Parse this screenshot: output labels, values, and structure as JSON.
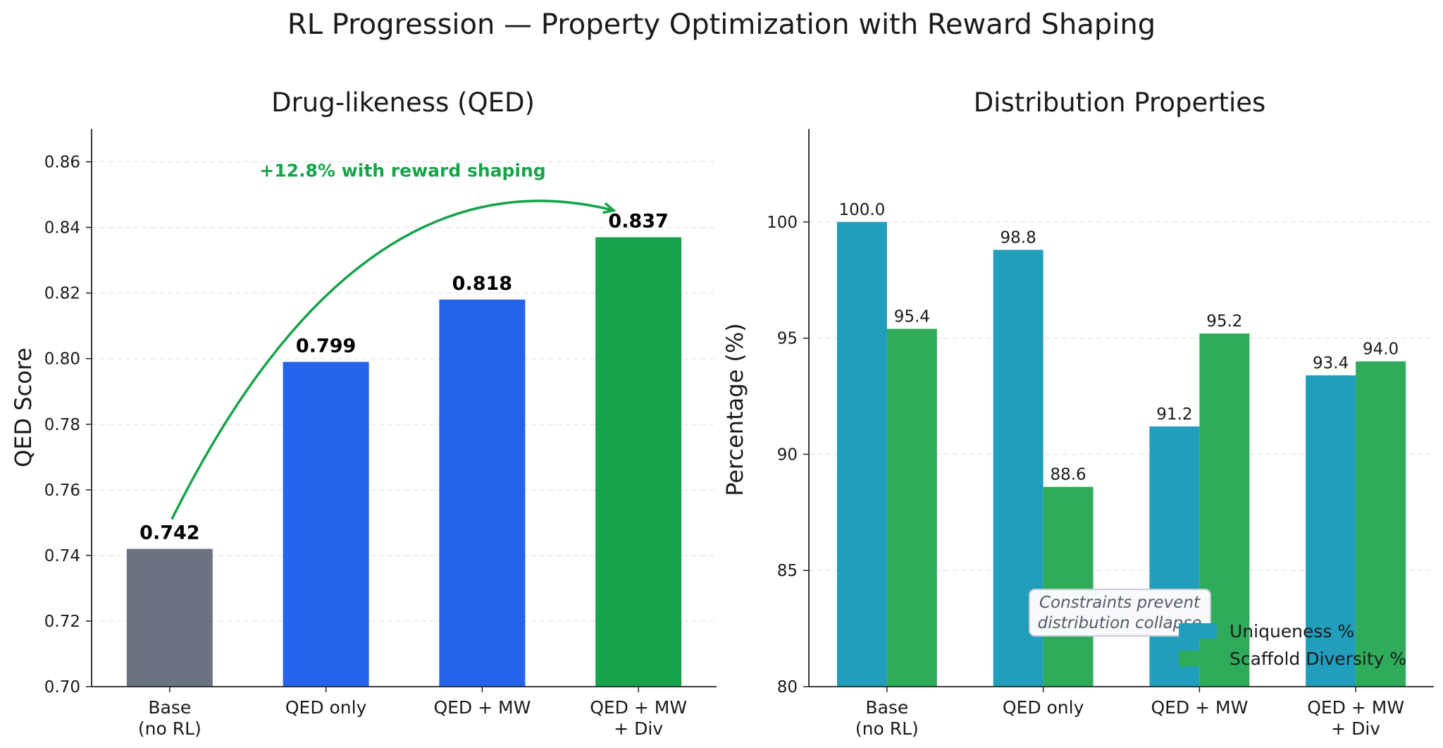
{
  "suptitle": "RL Progression — Property Optimization with Reward Shaping",
  "chart_data": [
    {
      "type": "bar",
      "title": "Drug-likeness (QED)",
      "xlabel": "",
      "ylabel": "QED Score",
      "categories": [
        [
          "Base",
          "(no RL)"
        ],
        [
          "QED only"
        ],
        [
          "QED + MW"
        ],
        [
          "QED + MW",
          "+ Div"
        ]
      ],
      "values": [
        0.742,
        0.799,
        0.818,
        0.837
      ],
      "value_labels": [
        "0.742",
        "0.799",
        "0.818",
        "0.837"
      ],
      "colors": [
        "#6b7280",
        "#2563eb",
        "#2563eb",
        "#16a34a"
      ],
      "ylim": [
        0.7,
        0.87
      ],
      "yticks": [
        "0.70",
        "0.72",
        "0.74",
        "0.76",
        "0.78",
        "0.80",
        "0.82",
        "0.84",
        "0.86"
      ],
      "grid": true,
      "annotation": {
        "text": "+12.8% with reward shaping",
        "from": "Base",
        "to": "QED + MW + Div",
        "color": "#16a34a"
      }
    },
    {
      "type": "bar",
      "title": "Distribution Properties",
      "xlabel": "",
      "ylabel": "Percentage (%)",
      "categories": [
        [
          "Base",
          "(no RL)"
        ],
        [
          "QED only"
        ],
        [
          "QED + MW"
        ],
        [
          "QED + MW",
          "+ Div"
        ]
      ],
      "series": [
        {
          "name": "Uniqueness %",
          "values": [
            100.0,
            98.8,
            91.2,
            93.4
          ],
          "labels": [
            "100.0",
            "98.8",
            "91.2",
            "93.4"
          ],
          "color": "#219ebc"
        },
        {
          "name": "Scaffold Diversity %",
          "values": [
            95.4,
            88.6,
            95.2,
            94.0
          ],
          "labels": [
            "95.4",
            "88.6",
            "95.2",
            "94.0"
          ],
          "color": "#2eac5a"
        }
      ],
      "ylim": [
        80,
        104
      ],
      "yticks": [
        "80",
        "85",
        "90",
        "95",
        "100"
      ],
      "grid": true,
      "legend": "lower-right",
      "note": [
        "Constraints prevent",
        "distribution collapse"
      ]
    }
  ]
}
